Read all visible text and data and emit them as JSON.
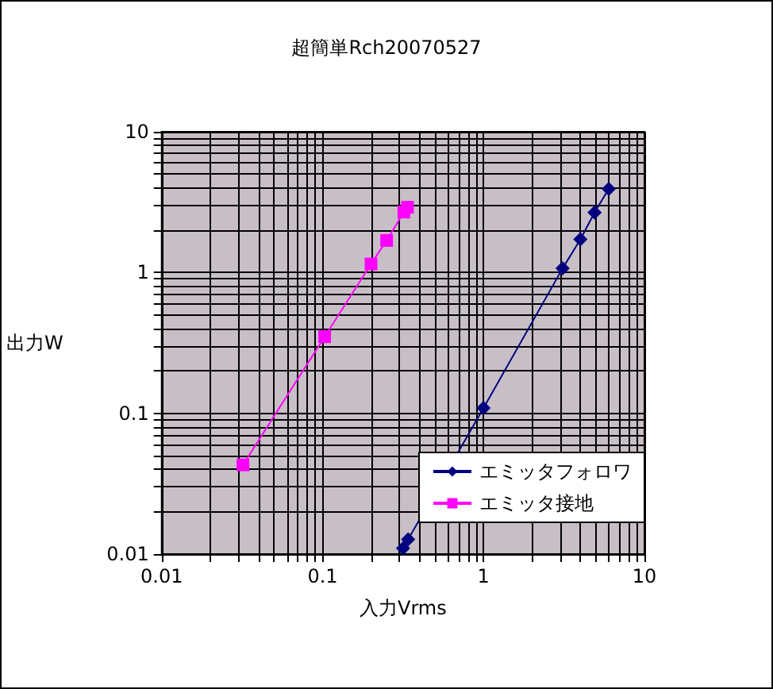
{
  "chart_data": {
    "type": "line",
    "title": "超簡単Rch20070527",
    "xlabel": "入力Vrms",
    "ylabel": "出力W",
    "log": "xy",
    "grid": true,
    "legend": "bottom right",
    "xlim": [
      0.01,
      10
    ],
    "ylim": [
      0.01,
      10
    ],
    "xticks": [
      0.01,
      {
        "value": 0.02,
        "label": null
      },
      {
        "value": 0.03,
        "label": null
      },
      {
        "value": 0.04,
        "label": null
      },
      {
        "value": 0.05,
        "label": null
      },
      {
        "value": 0.06,
        "label": null
      },
      {
        "value": 0.07,
        "label": null
      },
      {
        "value": 0.08,
        "label": null
      },
      {
        "value": 0.09,
        "label": null
      },
      0.1,
      {
        "value": 0.2,
        "label": null
      },
      {
        "value": 0.3,
        "label": null
      },
      {
        "value": 0.4,
        "label": null
      },
      {
        "value": 0.5,
        "label": null
      },
      {
        "value": 0.6,
        "label": null
      },
      {
        "value": 0.7,
        "label": null
      },
      {
        "value": 0.8,
        "label": null
      },
      {
        "value": 0.9,
        "label": null
      },
      1,
      {
        "value": 2,
        "label": null
      },
      {
        "value": 3,
        "label": null
      },
      {
        "value": 4,
        "label": null
      },
      {
        "value": 5,
        "label": null
      },
      {
        "value": 6,
        "label": null
      },
      {
        "value": 7,
        "label": null
      },
      {
        "value": 8,
        "label": null
      },
      {
        "value": 9,
        "label": null
      },
      10
    ],
    "yticks": [
      0.01,
      {
        "value": 0.02,
        "label": null
      },
      {
        "value": 0.03,
        "label": null
      },
      {
        "value": 0.04,
        "label": null
      },
      {
        "value": 0.05,
        "label": null
      },
      {
        "value": 0.06,
        "label": null
      },
      {
        "value": 0.07,
        "label": null
      },
      {
        "value": 0.08,
        "label": null
      },
      {
        "value": 0.09,
        "label": null
      },
      0.1,
      {
        "value": 0.2,
        "label": null
      },
      {
        "value": 0.3,
        "label": null
      },
      {
        "value": 0.4,
        "label": null
      },
      {
        "value": 0.5,
        "label": null
      },
      {
        "value": 0.6,
        "label": null
      },
      {
        "value": 0.7,
        "label": null
      },
      {
        "value": 0.8,
        "label": null
      },
      {
        "value": 0.9,
        "label": null
      },
      1,
      {
        "value": 2,
        "label": null
      },
      {
        "value": 3,
        "label": null
      },
      {
        "value": 4,
        "label": null
      },
      {
        "value": 5,
        "label": null
      },
      {
        "value": 6,
        "label": null
      },
      {
        "value": 7,
        "label": null
      },
      {
        "value": 8,
        "label": null
      },
      {
        "value": 9,
        "label": null
      },
      10
    ],
    "series": [
      {
        "name": "エミッタフォロワ",
        "color": "#000080",
        "marker": "diamond",
        "x": [
          0.316,
          0.34,
          1.0,
          3.1,
          4.0,
          4.9,
          6.0
        ],
        "values": [
          0.011,
          0.0127,
          0.109,
          1.07,
          1.72,
          2.67,
          3.93
        ]
      },
      {
        "name": "エミッタ接地",
        "color": "#ff00ff",
        "marker": "square",
        "x": [
          0.032,
          0.103,
          0.2,
          0.25,
          0.32,
          0.337
        ],
        "values": [
          0.043,
          0.35,
          1.15,
          1.69,
          2.69,
          2.91
        ]
      }
    ]
  }
}
